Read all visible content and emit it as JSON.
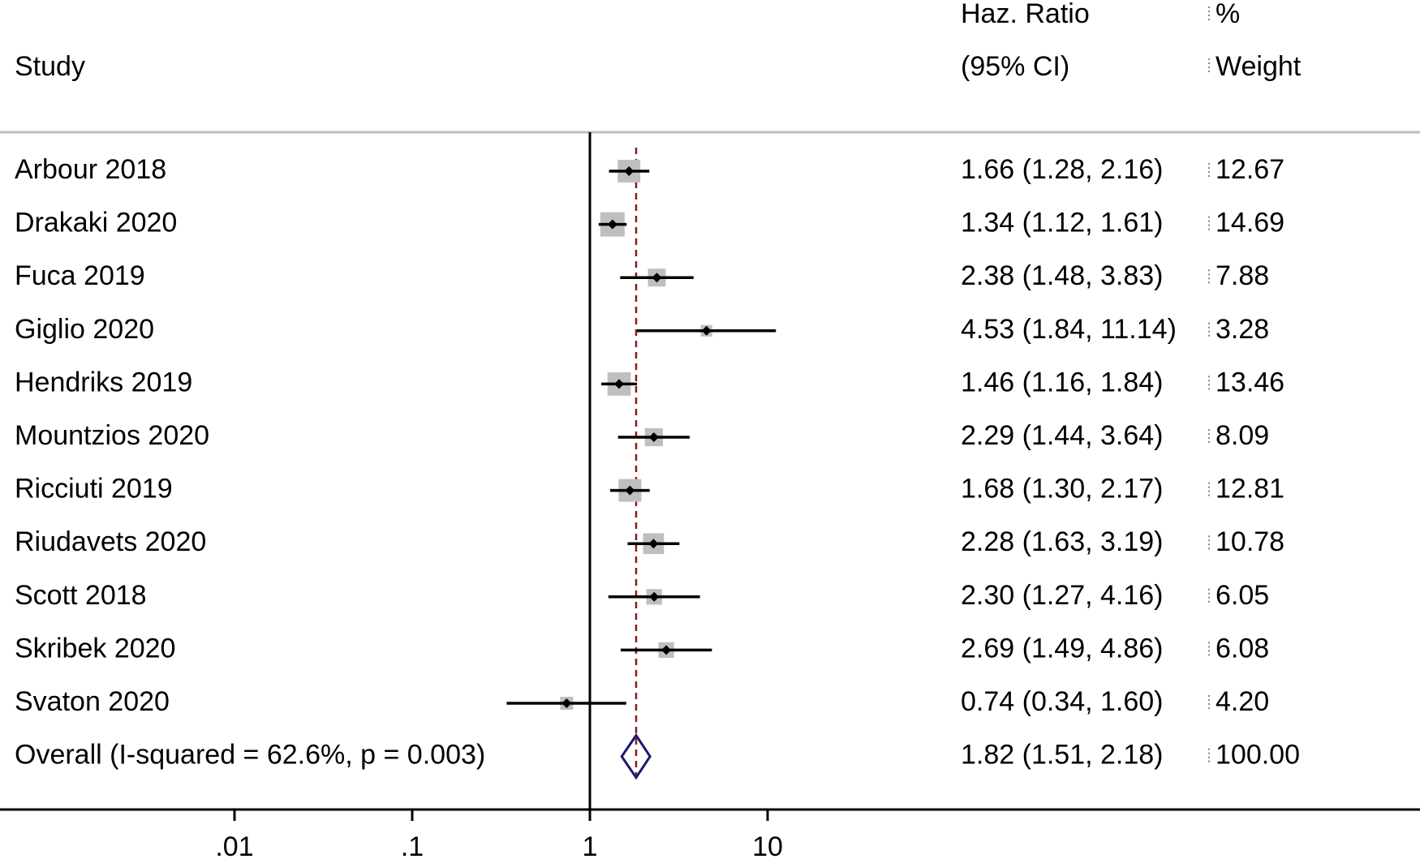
{
  "headers": {
    "study": "Study",
    "ratio_line1": "Haz. Ratio",
    "ratio_line2": "(95% CI)",
    "weight_line1": "%",
    "weight_line2": "Weight"
  },
  "chart_data": {
    "type": "forest",
    "x_scale": "log",
    "x_ticks": [
      {
        "value": 0.01,
        "label": ".01"
      },
      {
        "value": 0.1,
        "label": ".1"
      },
      {
        "value": 1,
        "label": "1"
      },
      {
        "value": 10,
        "label": "10"
      }
    ],
    "null_line": 1,
    "overall_line": 1.82,
    "studies": [
      {
        "name": "Arbour 2018",
        "hr": 1.66,
        "lo": 1.28,
        "hi": 2.16,
        "weight": 12.67,
        "ci_text": "1.66 (1.28, 2.16)",
        "weight_text": "12.67"
      },
      {
        "name": "Drakaki 2020",
        "hr": 1.34,
        "lo": 1.12,
        "hi": 1.61,
        "weight": 14.69,
        "ci_text": "1.34 (1.12, 1.61)",
        "weight_text": "14.69"
      },
      {
        "name": "Fuca 2019",
        "hr": 2.38,
        "lo": 1.48,
        "hi": 3.83,
        "weight": 7.88,
        "ci_text": "2.38 (1.48, 3.83)",
        "weight_text": "7.88"
      },
      {
        "name": "Giglio 2020",
        "hr": 4.53,
        "lo": 1.84,
        "hi": 11.14,
        "weight": 3.28,
        "ci_text": "4.53 (1.84, 11.14)",
        "weight_text": "3.28"
      },
      {
        "name": "Hendriks 2019",
        "hr": 1.46,
        "lo": 1.16,
        "hi": 1.84,
        "weight": 13.46,
        "ci_text": "1.46 (1.16, 1.84)",
        "weight_text": "13.46"
      },
      {
        "name": "Mountzios 2020",
        "hr": 2.29,
        "lo": 1.44,
        "hi": 3.64,
        "weight": 8.09,
        "ci_text": "2.29 (1.44, 3.64)",
        "weight_text": "8.09"
      },
      {
        "name": "Ricciuti 2019",
        "hr": 1.68,
        "lo": 1.3,
        "hi": 2.17,
        "weight": 12.81,
        "ci_text": "1.68 (1.30, 2.17)",
        "weight_text": "12.81"
      },
      {
        "name": "Riudavets 2020",
        "hr": 2.28,
        "lo": 1.63,
        "hi": 3.19,
        "weight": 10.78,
        "ci_text": "2.28 (1.63, 3.19)",
        "weight_text": "10.78"
      },
      {
        "name": "Scott 2018",
        "hr": 2.3,
        "lo": 1.27,
        "hi": 4.16,
        "weight": 6.05,
        "ci_text": "2.30 (1.27, 4.16)",
        "weight_text": "6.05"
      },
      {
        "name": "Skribek 2020",
        "hr": 2.69,
        "lo": 1.49,
        "hi": 4.86,
        "weight": 6.08,
        "ci_text": "2.69 (1.49, 4.86)",
        "weight_text": "6.08"
      },
      {
        "name": "Svaton 2020",
        "hr": 0.74,
        "lo": 0.34,
        "hi": 1.6,
        "weight": 4.2,
        "ci_text": "0.74 (0.34, 1.60)",
        "weight_text": "4.20"
      }
    ],
    "overall": {
      "name": "Overall  (I-squared = 62.6%, p = 0.003)",
      "hr": 1.82,
      "lo": 1.51,
      "hi": 2.18,
      "weight": 100.0,
      "ci_text": "1.82 (1.51, 2.18)",
      "weight_text": "100.00"
    },
    "colors": {
      "box": "#bfbfbf",
      "point": "#000000",
      "ci": "#000000",
      "null_line": "#000000",
      "overall_line": "#8b1a1a",
      "diamond": "#1a1a6e",
      "separator": "#bdbdbd"
    }
  }
}
